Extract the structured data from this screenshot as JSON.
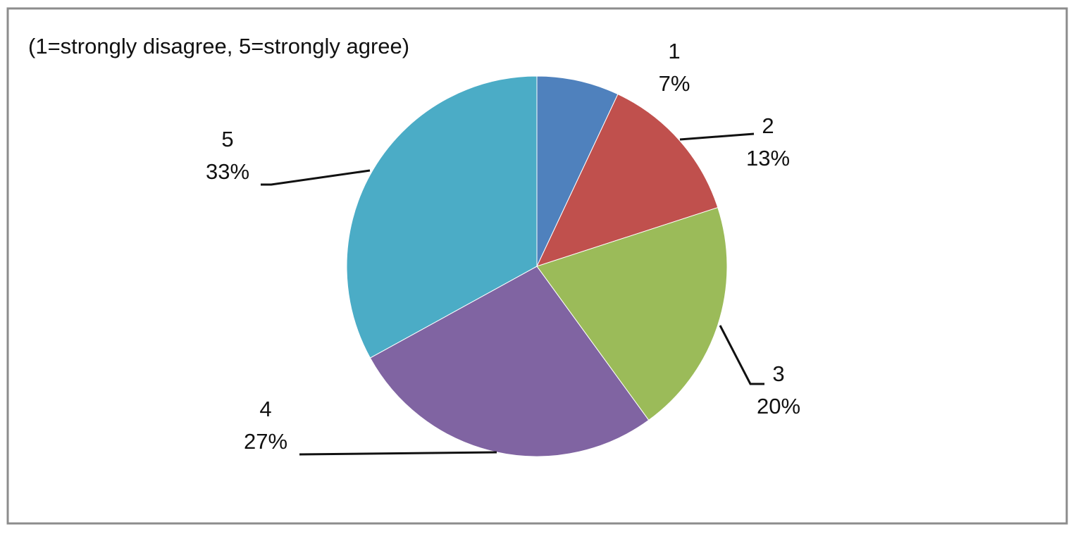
{
  "chart_data": {
    "type": "pie",
    "title": "(1=strongly disagree, 5=strongly agree)",
    "categories": [
      "1",
      "2",
      "3",
      "4",
      "5"
    ],
    "values": [
      7,
      13,
      20,
      27,
      33
    ],
    "value_labels": [
      "7%",
      "13%",
      "20%",
      "27%",
      "33%"
    ],
    "colors": [
      "#4f81bd",
      "#c0504d",
      "#9bbb59",
      "#8064a2",
      "#4bacc6"
    ]
  }
}
